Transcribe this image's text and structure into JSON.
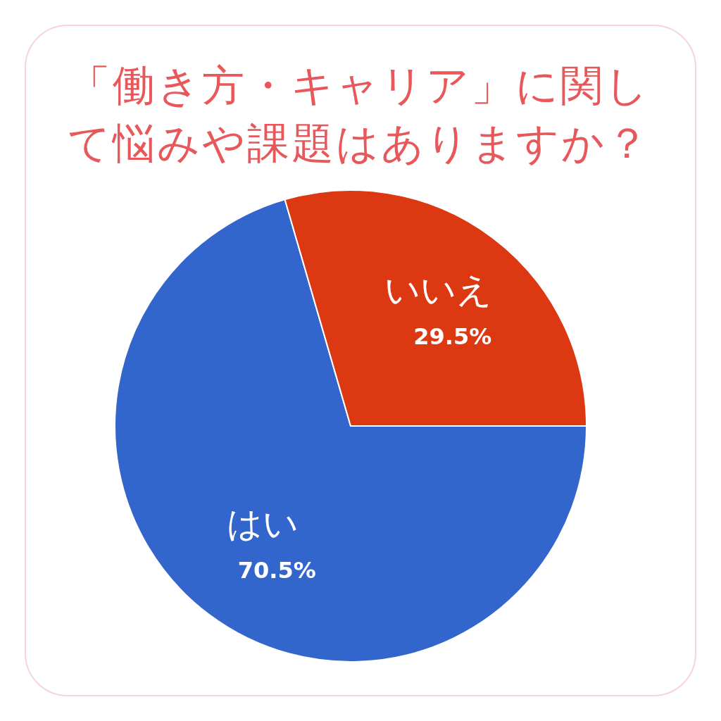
{
  "chart_data": {
    "type": "pie",
    "title": "「働き方・キャリア」に関して悩みや課題はありますか？",
    "categories": [
      "はい",
      "いいえ"
    ],
    "values": [
      70.5,
      29.5
    ],
    "colors": [
      "#3366cc",
      "#dc3912"
    ],
    "value_labels": [
      "70.5%",
      "29.5%"
    ]
  }
}
